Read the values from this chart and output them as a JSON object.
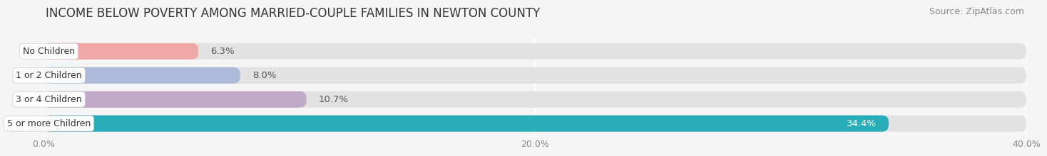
{
  "title": "INCOME BELOW POVERTY AMONG MARRIED-COUPLE FAMILIES IN NEWTON COUNTY",
  "source": "Source: ZipAtlas.com",
  "categories": [
    "No Children",
    "1 or 2 Children",
    "3 or 4 Children",
    "5 or more Children"
  ],
  "values": [
    6.3,
    8.0,
    10.7,
    34.4
  ],
  "bar_colors": [
    "#f0a8a6",
    "#adb9d8",
    "#c0aac8",
    "#29adb8"
  ],
  "xlim": [
    0,
    40
  ],
  "xticks": [
    0,
    20,
    40
  ],
  "xticklabels": [
    "0.0%",
    "20.0%",
    "40.0%"
  ],
  "background_color": "#f5f5f5",
  "bar_background_color": "#e2e2e2",
  "title_fontsize": 12,
  "source_fontsize": 9,
  "label_fontsize": 9,
  "value_fontsize": 9.5
}
